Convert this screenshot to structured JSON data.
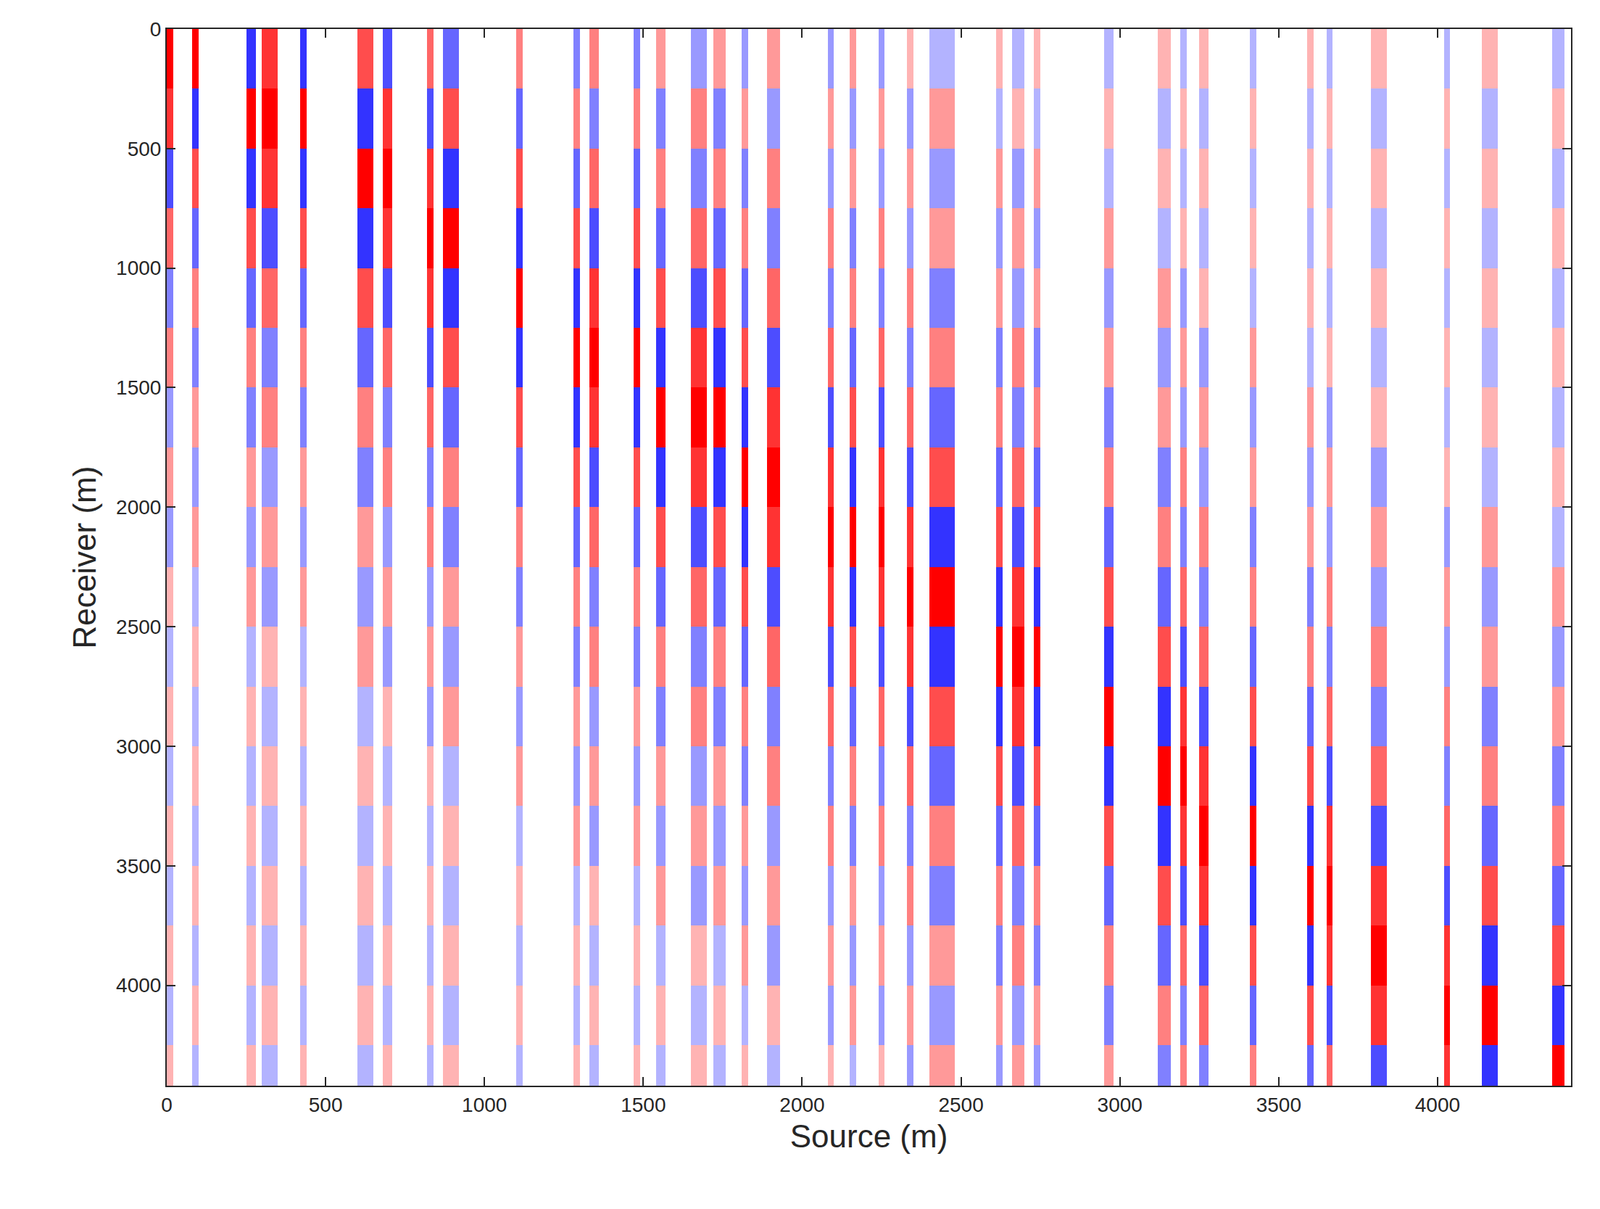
{
  "chart_data": {
    "type": "heatmap",
    "x_label": "Source (m)",
    "y_label": "Receiver (m)",
    "xlim": [
      0,
      4420
    ],
    "ylim": [
      0,
      4420
    ],
    "xticks": [
      0,
      500,
      1000,
      1500,
      2000,
      2500,
      3000,
      3500,
      4000
    ],
    "yticks": [
      0,
      500,
      1000,
      1500,
      2000,
      2500,
      3000,
      3500,
      4000
    ],
    "zlim": [
      -1,
      1
    ],
    "colors": [
      "#0000ff",
      "#ffffff",
      "#ff0000"
    ],
    "sources": [
      [
        0,
        20
      ],
      [
        80,
        100
      ],
      [
        250,
        280
      ],
      [
        300,
        350
      ],
      [
        420,
        440
      ],
      [
        600,
        650
      ],
      [
        680,
        710
      ],
      [
        820,
        840
      ],
      [
        870,
        920
      ],
      [
        1100,
        1120
      ],
      [
        1280,
        1300
      ],
      [
        1330,
        1360
      ],
      [
        1470,
        1490
      ],
      [
        1540,
        1570
      ],
      [
        1650,
        1700
      ],
      [
        1720,
        1760
      ],
      [
        1810,
        1830
      ],
      [
        1890,
        1930
      ],
      [
        2080,
        2100
      ],
      [
        2150,
        2170
      ],
      [
        2240,
        2260
      ],
      [
        2330,
        2350
      ],
      [
        2400,
        2480
      ],
      [
        2610,
        2630
      ],
      [
        2660,
        2700
      ],
      [
        2730,
        2750
      ],
      [
        2950,
        2980
      ],
      [
        3120,
        3160
      ],
      [
        3190,
        3210
      ],
      [
        3250,
        3280
      ],
      [
        3410,
        3430
      ],
      [
        3590,
        3610
      ],
      [
        3650,
        3670
      ],
      [
        3790,
        3840
      ],
      [
        4020,
        4040
      ],
      [
        4140,
        4190
      ],
      [
        4360,
        4400
      ]
    ],
    "receiver_edges": [
      0,
      250,
      500,
      750,
      1000,
      1250,
      1500,
      1750,
      2000,
      2250,
      2500,
      2750,
      3000,
      3250,
      3500,
      3750,
      4000,
      4250,
      4420
    ],
    "cells": [
      [
        1,
        1,
        -0.8,
        0.8,
        -0.8,
        0.7,
        -0.7,
        0.6,
        -0.6,
        0.5,
        -0.5,
        0.5,
        -0.5,
        0.4,
        -0.4,
        0.4,
        -0.4,
        0.4,
        -0.4,
        0.4,
        -0.4,
        0.3,
        -0.3,
        0.3,
        -0.3,
        0.3,
        -0.3,
        0.3,
        -0.3,
        0.3,
        -0.3,
        0.3,
        -0.3,
        0.3,
        -0.3,
        0.3,
        -0.3
      ],
      [
        0.8,
        -0.8,
        1,
        1,
        1,
        -0.8,
        0.8,
        -0.7,
        0.7,
        -0.6,
        0.5,
        -0.5,
        0.5,
        -0.5,
        0.5,
        -0.5,
        0.4,
        -0.4,
        0.4,
        -0.4,
        0.4,
        -0.4,
        0.4,
        -0.3,
        0.3,
        -0.3,
        0.3,
        -0.3,
        0.3,
        -0.3,
        0.3,
        -0.3,
        0.3,
        -0.3,
        0.3,
        -0.3,
        0.3
      ],
      [
        -0.7,
        0.7,
        -0.8,
        0.8,
        -0.8,
        1,
        1,
        0.8,
        -0.8,
        0.7,
        -0.6,
        0.6,
        -0.6,
        0.5,
        -0.5,
        0.5,
        -0.5,
        0.5,
        -0.4,
        0.4,
        -0.4,
        0.4,
        -0.4,
        0.4,
        -0.4,
        0.4,
        -0.3,
        0.3,
        -0.3,
        0.3,
        -0.3,
        0.3,
        -0.3,
        0.3,
        -0.3,
        0.3,
        -0.3
      ],
      [
        0.6,
        -0.6,
        0.7,
        -0.7,
        0.7,
        -0.8,
        0.8,
        1,
        1,
        -0.8,
        0.7,
        -0.7,
        0.7,
        -0.6,
        0.6,
        -0.6,
        0.5,
        -0.5,
        0.5,
        -0.5,
        0.5,
        -0.4,
        0.4,
        -0.4,
        0.4,
        -0.4,
        0.4,
        -0.3,
        0.3,
        -0.3,
        0.3,
        -0.3,
        0.3,
        -0.3,
        0.3,
        -0.3,
        0.3
      ],
      [
        -0.5,
        0.5,
        -0.6,
        0.6,
        -0.6,
        0.7,
        -0.7,
        0.8,
        -0.8,
        1,
        -0.8,
        0.8,
        -0.8,
        0.7,
        -0.7,
        0.7,
        -0.6,
        0.6,
        -0.5,
        0.5,
        -0.5,
        0.5,
        -0.5,
        0.4,
        -0.4,
        0.4,
        -0.4,
        0.4,
        -0.4,
        0.3,
        -0.3,
        0.3,
        -0.3,
        0.3,
        -0.3,
        0.3,
        -0.3
      ],
      [
        0.5,
        -0.5,
        0.5,
        -0.5,
        0.5,
        -0.6,
        0.6,
        -0.7,
        0.7,
        -0.8,
        1,
        1,
        1,
        -0.8,
        0.8,
        -0.8,
        0.7,
        -0.7,
        0.6,
        -0.6,
        0.6,
        -0.5,
        0.5,
        -0.5,
        0.5,
        -0.5,
        0.4,
        -0.4,
        0.4,
        -0.4,
        0.4,
        -0.3,
        0.3,
        -0.3,
        0.3,
        -0.3,
        0.3
      ],
      [
        -0.4,
        0.4,
        -0.5,
        0.5,
        -0.5,
        0.5,
        -0.5,
        0.6,
        -0.6,
        0.7,
        -0.8,
        0.8,
        -0.8,
        1,
        1,
        1,
        -0.8,
        0.8,
        -0.7,
        0.7,
        -0.7,
        0.6,
        -0.6,
        0.5,
        -0.5,
        0.5,
        -0.5,
        0.4,
        -0.4,
        0.4,
        -0.4,
        0.4,
        -0.4,
        0.3,
        -0.3,
        0.3,
        -0.3
      ],
      [
        0.4,
        -0.4,
        0.4,
        -0.4,
        0.4,
        -0.5,
        0.5,
        -0.5,
        0.5,
        -0.6,
        0.7,
        -0.7,
        0.7,
        -0.8,
        0.8,
        -0.8,
        1,
        1,
        0.8,
        -0.8,
        0.8,
        -0.7,
        0.7,
        -0.6,
        0.6,
        -0.6,
        0.5,
        -0.5,
        0.5,
        -0.4,
        0.4,
        -0.4,
        0.4,
        -0.4,
        0.3,
        -0.3,
        0.3
      ],
      [
        -0.4,
        0.4,
        -0.4,
        0.4,
        -0.4,
        0.4,
        -0.4,
        0.5,
        -0.5,
        0.5,
        -0.6,
        0.6,
        -0.6,
        0.7,
        -0.7,
        0.7,
        -0.8,
        0.8,
        1,
        1,
        1,
        0.8,
        -0.8,
        0.7,
        -0.7,
        0.7,
        -0.6,
        0.5,
        -0.5,
        0.5,
        -0.5,
        0.4,
        -0.4,
        0.4,
        -0.4,
        0.4,
        -0.3
      ],
      [
        0.3,
        -0.3,
        0.4,
        -0.4,
        0.4,
        -0.4,
        0.4,
        -0.4,
        0.4,
        -0.5,
        0.5,
        -0.5,
        0.5,
        -0.6,
        0.6,
        -0.6,
        0.7,
        -0.7,
        0.8,
        -0.8,
        0.8,
        1,
        1,
        -0.8,
        0.8,
        -0.8,
        0.7,
        -0.6,
        0.6,
        -0.5,
        0.5,
        -0.5,
        0.5,
        -0.4,
        0.4,
        -0.4,
        0.4
      ],
      [
        -0.3,
        0.3,
        -0.3,
        0.3,
        -0.3,
        0.4,
        -0.4,
        0.4,
        -0.4,
        0.4,
        -0.5,
        0.5,
        -0.5,
        0.5,
        -0.5,
        0.5,
        -0.6,
        0.6,
        -0.7,
        0.7,
        -0.7,
        0.8,
        -0.8,
        1,
        1,
        1,
        -0.8,
        0.7,
        -0.7,
        0.6,
        -0.6,
        0.5,
        -0.5,
        0.5,
        -0.4,
        0.4,
        -0.4
      ],
      [
        0.3,
        -0.3,
        0.3,
        -0.3,
        0.3,
        -0.3,
        0.3,
        -0.4,
        0.4,
        -0.4,
        0.4,
        -0.4,
        0.4,
        -0.5,
        0.5,
        -0.5,
        0.5,
        -0.5,
        0.6,
        -0.6,
        0.6,
        -0.7,
        0.7,
        -0.8,
        0.8,
        -0.8,
        1,
        -0.8,
        0.8,
        -0.7,
        0.7,
        -0.6,
        0.6,
        -0.5,
        0.5,
        -0.5,
        0.4
      ],
      [
        -0.3,
        0.3,
        -0.3,
        0.3,
        -0.3,
        0.3,
        -0.3,
        0.3,
        -0.3,
        0.4,
        -0.4,
        0.4,
        -0.4,
        0.4,
        -0.4,
        0.4,
        -0.5,
        0.5,
        -0.5,
        0.5,
        -0.5,
        0.6,
        -0.6,
        0.7,
        -0.7,
        0.7,
        -0.8,
        1,
        1,
        0.8,
        -0.8,
        0.7,
        -0.7,
        0.6,
        -0.5,
        0.5,
        -0.5
      ],
      [
        0.3,
        -0.3,
        0.3,
        -0.3,
        0.3,
        -0.3,
        0.3,
        -0.3,
        0.3,
        -0.3,
        0.4,
        -0.4,
        0.4,
        -0.4,
        0.4,
        -0.4,
        0.4,
        -0.4,
        0.5,
        -0.5,
        0.5,
        -0.5,
        0.5,
        -0.6,
        0.6,
        -0.6,
        0.7,
        -0.8,
        0.8,
        1,
        1,
        -0.8,
        0.8,
        -0.7,
        0.6,
        -0.6,
        0.5
      ],
      [
        -0.3,
        0.3,
        -0.3,
        0.3,
        -0.3,
        0.3,
        -0.3,
        0.3,
        -0.3,
        0.3,
        -0.3,
        0.3,
        -0.3,
        0.4,
        -0.4,
        0.4,
        -0.4,
        0.4,
        -0.4,
        0.4,
        -0.4,
        0.5,
        -0.5,
        0.5,
        -0.5,
        0.5,
        -0.6,
        0.7,
        -0.7,
        0.8,
        -0.8,
        1,
        1,
        0.8,
        -0.7,
        0.7,
        -0.6
      ],
      [
        0.3,
        -0.3,
        0.3,
        -0.3,
        0.3,
        -0.3,
        0.3,
        -0.3,
        0.3,
        -0.3,
        0.3,
        -0.3,
        0.3,
        -0.3,
        0.3,
        -0.3,
        0.4,
        -0.4,
        0.4,
        -0.4,
        0.4,
        -0.4,
        0.4,
        -0.5,
        0.5,
        -0.5,
        0.5,
        -0.6,
        0.6,
        -0.7,
        0.7,
        -0.8,
        0.8,
        1,
        0.8,
        -0.8,
        0.7
      ],
      [
        -0.3,
        0.3,
        -0.3,
        0.3,
        -0.3,
        0.3,
        -0.3,
        0.3,
        -0.3,
        0.3,
        -0.3,
        0.3,
        -0.3,
        0.3,
        -0.3,
        0.3,
        -0.3,
        0.3,
        -0.4,
        0.4,
        -0.4,
        0.4,
        -0.4,
        0.4,
        -0.4,
        0.4,
        -0.5,
        0.5,
        -0.5,
        0.6,
        -0.6,
        0.7,
        -0.7,
        0.8,
        1,
        1,
        -0.8
      ],
      [
        0.3,
        -0.3,
        0.3,
        -0.3,
        0.3,
        -0.3,
        0.3,
        -0.3,
        0.3,
        -0.3,
        0.3,
        -0.3,
        0.3,
        -0.3,
        0.3,
        -0.3,
        0.3,
        -0.3,
        0.3,
        -0.3,
        0.3,
        -0.4,
        0.4,
        -0.4,
        0.4,
        -0.4,
        0.4,
        -0.5,
        0.5,
        -0.5,
        0.5,
        -0.6,
        0.6,
        -0.7,
        0.8,
        -0.8,
        1
      ]
    ]
  }
}
